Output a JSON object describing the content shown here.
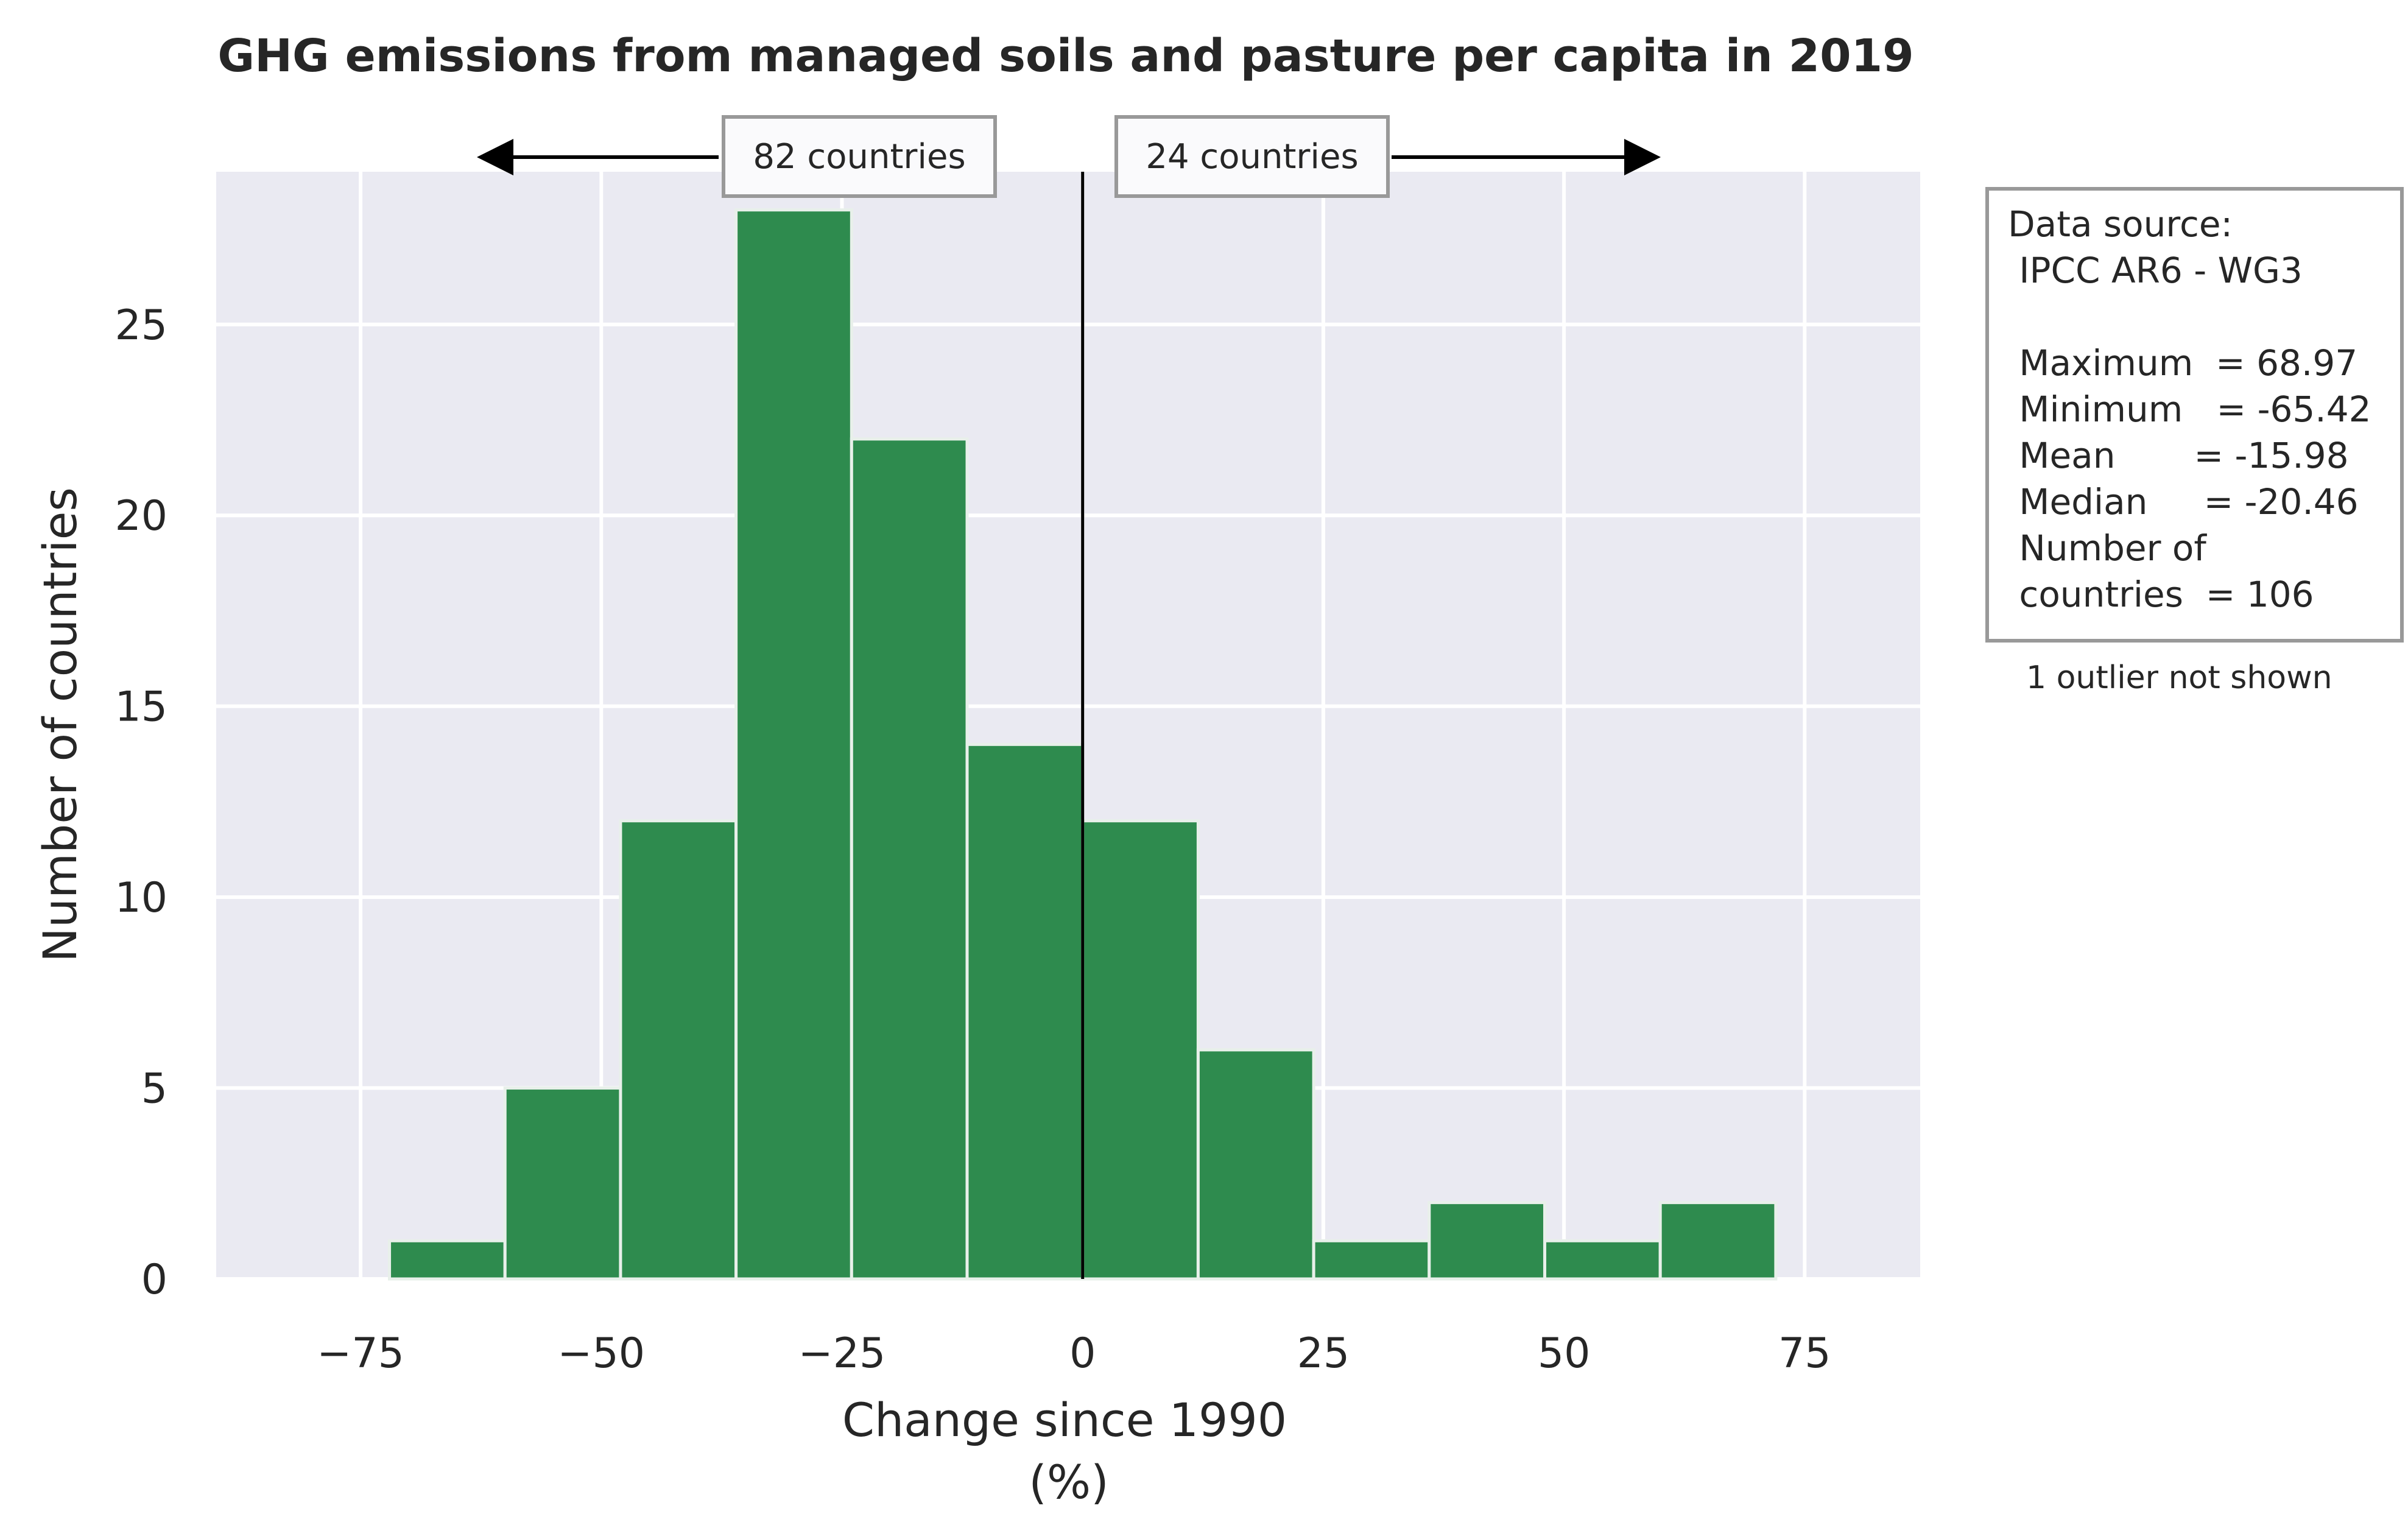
{
  "chart_data": {
    "type": "bar",
    "title": "GHG emissions from managed soils and pasture per capita in 2019",
    "xlabel": "Change since 1990",
    "xlabel_unit": "(%)",
    "ylabel": "Number of countries",
    "xlim": [
      -90,
      87
    ],
    "ylim": [
      0,
      29
    ],
    "xticks": [
      -75,
      -50,
      -25,
      0,
      25,
      50,
      75
    ],
    "xtick_labels": [
      "−75",
      "−50",
      "−25",
      "0",
      "25",
      "50",
      "75"
    ],
    "yticks": [
      0,
      5,
      10,
      15,
      20,
      25
    ],
    "ytick_labels": [
      "0",
      "5",
      "10",
      "15",
      "20",
      "25"
    ],
    "grid": true,
    "bar_color": "#2e8b4e",
    "background_color": "#eaeaf2",
    "bins": [
      {
        "x0": -72,
        "x1": -60,
        "count": 1
      },
      {
        "x0": -60,
        "x1": -48,
        "count": 5
      },
      {
        "x0": -48,
        "x1": -36,
        "count": 12
      },
      {
        "x0": -36,
        "x1": -24,
        "count": 28
      },
      {
        "x0": -24,
        "x1": -12,
        "count": 22
      },
      {
        "x0": -12,
        "x1": 0,
        "count": 14
      },
      {
        "x0": 0,
        "x1": 12,
        "count": 12
      },
      {
        "x0": 12,
        "x1": 24,
        "count": 6
      },
      {
        "x0": 24,
        "x1": 36,
        "count": 1
      },
      {
        "x0": 36,
        "x1": 48,
        "count": 2
      },
      {
        "x0": 48,
        "x1": 60,
        "count": 1
      },
      {
        "x0": 60,
        "x1": 72,
        "count": 2
      }
    ],
    "reference_line_x": 0,
    "annotations": {
      "left_label": "82 countries",
      "right_label": "24 countries"
    },
    "info_box": {
      "lines": [
        "Data source:",
        " IPCC AR6 - WG3",
        "",
        " Maximum  = 68.97",
        " Minimum   = -65.42",
        " Mean       = -15.98",
        " Median     = -20.46",
        " Number of",
        " countries  = 106"
      ]
    },
    "note": "1 outlier not shown"
  }
}
